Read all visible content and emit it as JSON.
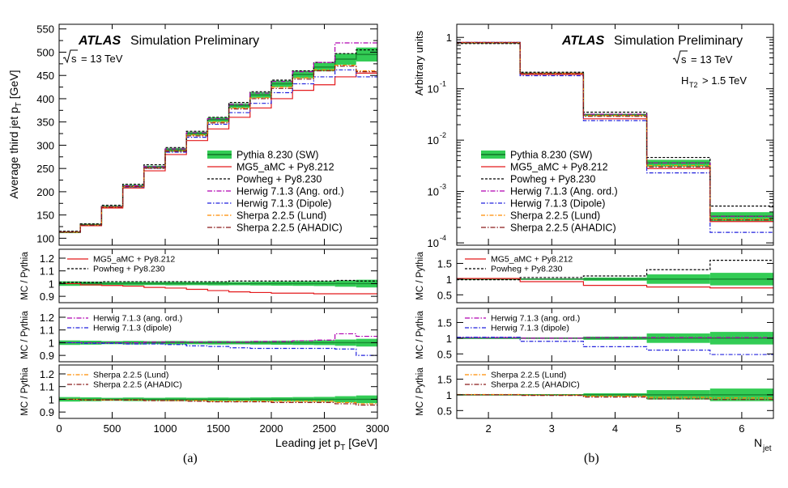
{
  "panels": {
    "a": {
      "label": "(a)"
    },
    "b": {
      "label": "(b)"
    }
  },
  "colors": {
    "pythia": "#33cc55",
    "pythia_line": "#1a8a33",
    "mg5": "#e41a1c",
    "powheg": "#000000",
    "herwig_ang": "#b000b0",
    "herwig_dip": "#2222dd",
    "sherpa_lund": "#ff8c00",
    "sherpa_ahadic": "#8b1a1a"
  },
  "chart_data": [
    {
      "type": "line",
      "panel": "a",
      "atlas": "ATLAS",
      "title": "Simulation Preliminary",
      "energy_root": "s",
      "energy_rest": "= 13 TeV",
      "xlabel_main": "Leading jet p",
      "xlabel_sub": "T",
      "xlabel_unit": "[GeV]",
      "ylabel_main": "Average third jet p",
      "ylabel_sub": "T",
      "ylabel_unit": "[GeV]",
      "ratio_ylabel": "MC / Pythia",
      "x_edges": [
        0,
        200,
        400,
        600,
        800,
        1000,
        1200,
        1400,
        1600,
        1800,
        2000,
        2200,
        2400,
        2600,
        2800,
        3000
      ],
      "x_ticks": [
        "0",
        "500",
        "1000",
        "1500",
        "2000",
        "2500",
        "3000"
      ],
      "x_tick_values": [
        0,
        500,
        1000,
        1500,
        2000,
        2500,
        3000
      ],
      "xlim": [
        0,
        3000
      ],
      "ylim": [
        85,
        560
      ],
      "y_ticks": [
        "100",
        "150",
        "200",
        "250",
        "300",
        "350",
        "400",
        "450",
        "500",
        "550"
      ],
      "y_tick_values": [
        100,
        150,
        200,
        250,
        300,
        350,
        400,
        450,
        500,
        550
      ],
      "series": [
        {
          "key": "pythia",
          "name": "Pythia 8.230 (SW)",
          "values": [
            113,
            129,
            168,
            212,
            253,
            290,
            325,
            355,
            385,
            408,
            432,
            452,
            468,
            485,
            495
          ],
          "band": [
            2,
            2,
            2,
            3,
            3,
            4,
            4,
            5,
            5,
            6,
            7,
            8,
            9,
            12,
            15
          ]
        },
        {
          "key": "mg5",
          "name": "MG5_aMC + Py8.212",
          "values": [
            113,
            127,
            165,
            208,
            245,
            280,
            310,
            335,
            360,
            380,
            400,
            418,
            430,
            447,
            455
          ]
        },
        {
          "key": "powheg",
          "name": "Powheg + Py8.230",
          "values": [
            115,
            131,
            171,
            216,
            258,
            295,
            330,
            360,
            392,
            415,
            440,
            460,
            478,
            497,
            505
          ]
        },
        {
          "key": "herwig_ang",
          "name": "Herwig 7.1.3 (Ang. ord.)",
          "values": [
            113,
            128,
            168,
            213,
            254,
            292,
            327,
            357,
            388,
            412,
            437,
            458,
            478,
            520,
            520
          ]
        },
        {
          "key": "herwig_dip",
          "name": "Herwig 7.1.3 (Dipole)",
          "values": [
            113,
            128,
            167,
            210,
            250,
            285,
            317,
            345,
            370,
            390,
            413,
            432,
            447,
            462,
            447
          ]
        },
        {
          "key": "sherpa_lund",
          "name": "Sherpa 2.2.5 (Lund)",
          "values": [
            113,
            128,
            167,
            211,
            251,
            288,
            322,
            350,
            380,
            402,
            425,
            445,
            462,
            472,
            460
          ]
        },
        {
          "key": "sherpa_ahadic",
          "name": "Sherpa 2.2.5 (AHADIC)",
          "values": [
            113,
            128,
            167,
            211,
            251,
            287,
            320,
            348,
            378,
            400,
            422,
            442,
            460,
            470,
            458
          ]
        }
      ],
      "ratios": [
        {
          "ylim": [
            0.85,
            1.27
          ],
          "y_ticks": [
            "0.9",
            "1",
            "1.1",
            "1.2"
          ],
          "y_tick_values": [
            0.9,
            1.0,
            1.1,
            1.2
          ],
          "legend": [
            {
              "key": "mg5",
              "label": "MG5_aMC + Py8.212"
            },
            {
              "key": "powheg",
              "label": "Powheg + Py8.230"
            }
          ],
          "series": [
            {
              "key": "mg5",
              "values": [
                1.0,
                0.99,
                0.985,
                0.98,
                0.97,
                0.965,
                0.955,
                0.945,
                0.935,
                0.93,
                0.925,
                0.925,
                0.92,
                0.92,
                0.92
              ]
            },
            {
              "key": "powheg",
              "values": [
                1.01,
                1.01,
                1.015,
                1.015,
                1.015,
                1.015,
                1.015,
                1.015,
                1.02,
                1.02,
                1.02,
                1.02,
                1.02,
                1.025,
                1.02
              ]
            }
          ]
        },
        {
          "ylim": [
            0.85,
            1.27
          ],
          "y_ticks": [
            "0.9",
            "1",
            "1.1",
            "1.2"
          ],
          "y_tick_values": [
            0.9,
            1.0,
            1.1,
            1.2
          ],
          "legend": [
            {
              "key": "herwig_ang",
              "label": "Herwig 7.1.3 (ang. ord.)"
            },
            {
              "key": "herwig_dip",
              "label": "Herwig 7.1.3 (dipole)"
            }
          ],
          "series": [
            {
              "key": "herwig_ang",
              "values": [
                1.0,
                1.0,
                1.0,
                1.0,
                1.005,
                1.005,
                1.005,
                1.005,
                1.005,
                1.01,
                1.01,
                1.015,
                1.02,
                1.07,
                1.05
              ]
            },
            {
              "key": "herwig_dip",
              "values": [
                1.0,
                0.995,
                0.995,
                0.99,
                0.99,
                0.985,
                0.975,
                0.97,
                0.96,
                0.955,
                0.955,
                0.955,
                0.955,
                0.95,
                0.9
              ]
            }
          ]
        },
        {
          "ylim": [
            0.85,
            1.27
          ],
          "y_ticks": [
            "0.9",
            "1",
            "1.1",
            "1.2"
          ],
          "y_tick_values": [
            0.9,
            1.0,
            1.1,
            1.2
          ],
          "legend": [
            {
              "key": "sherpa_lund",
              "label": "Sherpa 2.2.5 (Lund)"
            },
            {
              "key": "sherpa_ahadic",
              "label": "Sherpa 2.2.5 (AHADIC)"
            }
          ],
          "series": [
            {
              "key": "sherpa_lund",
              "values": [
                1.0,
                0.995,
                0.995,
                0.995,
                0.99,
                0.99,
                0.99,
                0.985,
                0.985,
                0.985,
                0.985,
                0.985,
                0.985,
                0.975,
                0.965
              ]
            },
            {
              "key": "sherpa_ahadic",
              "values": [
                1.0,
                0.995,
                0.995,
                0.995,
                0.99,
                0.99,
                0.985,
                0.98,
                0.98,
                0.98,
                0.975,
                0.975,
                0.975,
                0.965,
                0.955
              ]
            }
          ]
        }
      ]
    },
    {
      "type": "line",
      "panel": "b",
      "atlas": "ATLAS",
      "title": "Simulation Preliminary",
      "energy_root": "s",
      "energy_rest": "= 13 TeV",
      "cut_main": "H",
      "cut_sub": "T2",
      "cut_rest": "> 1.5 TeV",
      "xlabel_main": "N",
      "xlabel_sub": "jet",
      "ylabel": "Arbitrary units",
      "ratio_ylabel": "MC / Pythia",
      "log_y": true,
      "x_edges": [
        1.5,
        2.5,
        3.5,
        4.5,
        5.5,
        6.5
      ],
      "x_ticks": [
        "2",
        "3",
        "4",
        "5",
        "6"
      ],
      "x_tick_values": [
        2,
        3,
        4,
        5,
        6
      ],
      "xlim": [
        1.5,
        6.5
      ],
      "ylim": [
        9e-05,
        1.8
      ],
      "y_ticks": [
        "10",
        "10",
        "10",
        "10",
        "1"
      ],
      "y_tick_exp": [
        "-4",
        "-3",
        "-2",
        "-1",
        ""
      ],
      "y_tick_values": [
        0.0001,
        0.001,
        0.01,
        0.1,
        1
      ],
      "series": [
        {
          "key": "pythia",
          "name": "Pythia 8.230 (SW)",
          "values": [
            0.78,
            0.2,
            0.031,
            0.0036,
            0.00033
          ],
          "band_ratio": [
            0.02,
            0.02,
            0.05,
            0.15,
            0.2
          ]
        },
        {
          "key": "mg5",
          "name": "MG5_aMC + Py8.212",
          "values": [
            0.8,
            0.19,
            0.026,
            0.0028,
            0.00026
          ]
        },
        {
          "key": "powheg",
          "name": "Powheg + Py8.230",
          "values": [
            0.76,
            0.21,
            0.035,
            0.0046,
            0.00052
          ]
        },
        {
          "key": "herwig_ang",
          "name": "Herwig 7.1.3 (Ang. ord.)",
          "values": [
            0.79,
            0.2,
            0.032,
            0.0036,
            0.00033
          ]
        },
        {
          "key": "herwig_dip",
          "name": "Herwig 7.1.3 (Dipole)",
          "values": [
            0.8,
            0.18,
            0.024,
            0.0023,
            0.00016
          ]
        },
        {
          "key": "sherpa_lund",
          "name": "Sherpa 2.2.5 (Lund)",
          "values": [
            0.79,
            0.2,
            0.03,
            0.0032,
            0.00029
          ]
        },
        {
          "key": "sherpa_ahadic",
          "name": "Sherpa 2.2.5 (AHADIC)",
          "values": [
            0.79,
            0.2,
            0.029,
            0.003,
            0.00028
          ]
        }
      ],
      "ratios": [
        {
          "ylim": [
            0.25,
            1.95
          ],
          "y_ticks": [
            "0.5",
            "1",
            "1.5"
          ],
          "y_tick_values": [
            0.5,
            1.0,
            1.5
          ],
          "legend": [
            {
              "key": "mg5",
              "label": "MG5_aMC + Py8.212"
            },
            {
              "key": "powheg",
              "label": "Powheg + Py8.230"
            }
          ],
          "series": [
            {
              "key": "mg5",
              "values": [
                1.02,
                0.92,
                0.8,
                0.75,
                0.72
              ]
            },
            {
              "key": "powheg",
              "values": [
                0.98,
                1.05,
                1.1,
                1.3,
                1.6
              ]
            }
          ]
        },
        {
          "ylim": [
            0.25,
            1.95
          ],
          "y_ticks": [
            "0.5",
            "1",
            "1.5"
          ],
          "y_tick_values": [
            0.5,
            1.0,
            1.5
          ],
          "legend": [
            {
              "key": "herwig_ang",
              "label": "Herwig 7.1.3 (ang. ord.)"
            },
            {
              "key": "herwig_dip",
              "label": "Herwig 7.1.3 (dipole)"
            }
          ],
          "series": [
            {
              "key": "herwig_ang",
              "values": [
                1.02,
                1.0,
                1.02,
                1.02,
                1.02
              ]
            },
            {
              "key": "herwig_dip",
              "values": [
                1.03,
                0.9,
                0.73,
                0.62,
                0.48
              ]
            }
          ]
        },
        {
          "ylim": [
            0.25,
            1.95
          ],
          "y_ticks": [
            "0.5",
            "1",
            "1.5"
          ],
          "y_tick_values": [
            0.5,
            1.0,
            1.5
          ],
          "legend": [
            {
              "key": "sherpa_lund",
              "label": "Sherpa 2.2.5 (Lund)"
            },
            {
              "key": "sherpa_ahadic",
              "label": "Sherpa 2.2.5 (AHADIC)"
            }
          ],
          "series": [
            {
              "key": "sherpa_lund",
              "values": [
                1.01,
                0.99,
                0.96,
                0.92,
                0.9
              ]
            },
            {
              "key": "sherpa_ahadic",
              "values": [
                1.0,
                0.98,
                0.93,
                0.87,
                0.85
              ]
            }
          ]
        }
      ]
    }
  ]
}
